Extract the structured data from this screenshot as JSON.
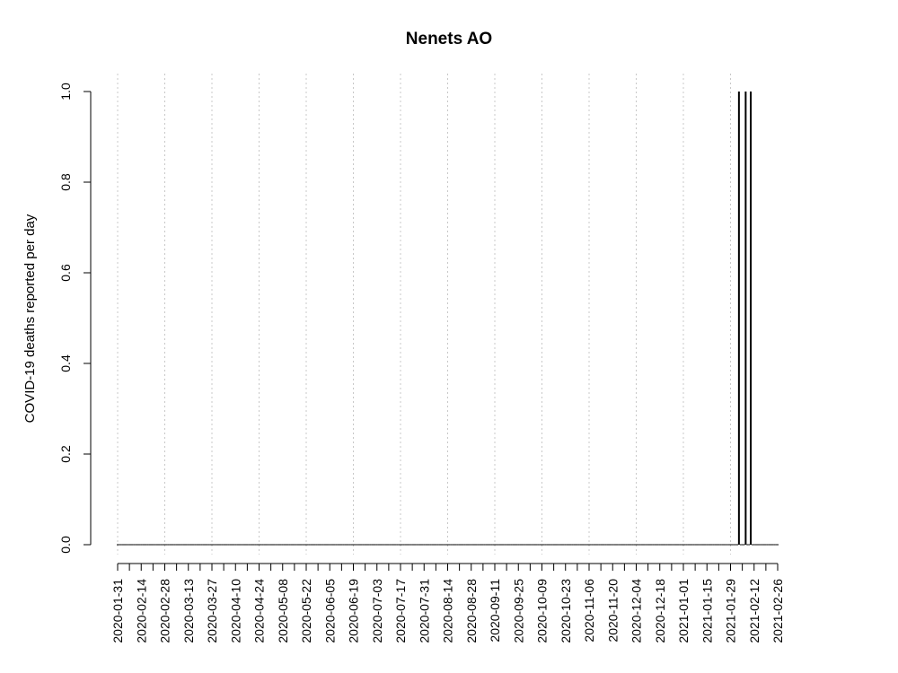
{
  "chart_data": {
    "type": "bar",
    "title": "Nenets AO",
    "xlabel": "",
    "ylabel": "COVID-19 deaths reported per day",
    "x_start": "2020-01-31",
    "x_end": "2021-02-26",
    "x_ticks": [
      "2020-01-31",
      "2020-02-14",
      "2020-02-28",
      "2020-03-13",
      "2020-03-27",
      "2020-04-10",
      "2020-04-24",
      "2020-05-08",
      "2020-05-22",
      "2020-06-05",
      "2020-06-19",
      "2020-07-03",
      "2020-07-17",
      "2020-07-31",
      "2020-08-14",
      "2020-08-28",
      "2020-09-11",
      "2020-09-25",
      "2020-10-09",
      "2020-10-23",
      "2020-11-06",
      "2020-11-20",
      "2020-12-04",
      "2020-12-18",
      "2021-01-01",
      "2021-01-15",
      "2021-01-29",
      "2021-02-12",
      "2021-02-26"
    ],
    "gridlines_x": [
      "2020-01-31",
      "2020-02-28",
      "2020-03-27",
      "2020-04-24",
      "2020-05-22",
      "2020-06-19",
      "2020-07-17",
      "2020-08-14",
      "2020-09-11",
      "2020-10-09",
      "2020-11-06",
      "2020-12-04",
      "2021-01-01",
      "2021-01-29"
    ],
    "y_ticks": [
      "0.0",
      "0.2",
      "0.4",
      "0.6",
      "0.8",
      "1.0"
    ],
    "ylim": [
      0,
      1
    ],
    "nonzero_points": [
      {
        "x": "2021-02-03",
        "y": 1
      },
      {
        "x": "2021-02-07",
        "y": 1
      },
      {
        "x": "2021-02-10",
        "y": 1
      }
    ],
    "default_value": 0,
    "grid": true,
    "colors": {
      "bars": "#000000",
      "grid": "#c8c8c8",
      "axis": "#000000"
    }
  }
}
